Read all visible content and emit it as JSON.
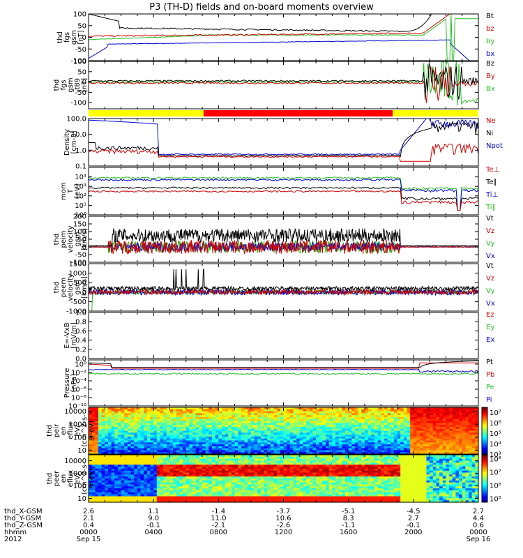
{
  "figure": {
    "title": "P3 (TH-D) fields and on-board moments overview"
  },
  "chart_data": [
    {
      "type": "line",
      "ylabel": [
        "thd",
        "fgs",
        "gsm",
        "[nT]"
      ],
      "ylim": [
        -100,
        100
      ],
      "yticks": [
        "100",
        "50",
        "0",
        "-50",
        "-100"
      ],
      "yscale": "linear",
      "series": [
        {
          "name": "Bt",
          "color": "#000000"
        },
        {
          "name": "bz",
          "color": "#d00000"
        },
        {
          "name": "by",
          "color": "#20c020"
        },
        {
          "name": "bx",
          "color": "#0000d0"
        }
      ]
    },
    {
      "type": "line",
      "ylabel": [
        "thd",
        "fgs",
        "gsm",
        "-t89",
        "[nT]"
      ],
      "ylim": [
        -130,
        100
      ],
      "yticks": [
        "100",
        "50",
        "0",
        "-50",
        "-100"
      ],
      "yscale": "linear",
      "series": [
        {
          "name": "Bz",
          "color": "#000000"
        },
        {
          "name": "By",
          "color": "#d00000"
        },
        {
          "name": "Bx",
          "color": "#20c020"
        }
      ]
    },
    {
      "type": "bar",
      "note": "mode bar",
      "segments": [
        {
          "from": 0.0,
          "to": 0.295,
          "color": "#ffff00"
        },
        {
          "from": 0.295,
          "to": 0.78,
          "color": "#ff0000"
        },
        {
          "from": 0.78,
          "to": 1.0,
          "color": "#ffff00"
        }
      ]
    },
    {
      "type": "line",
      "ylabel": [
        "Density",
        "[cm-3]"
      ],
      "yscale": "log",
      "ylim": [
        0.1,
        100
      ],
      "yticks": [
        "100.0",
        "10.0",
        "1.0",
        "0.1"
      ],
      "series": [
        {
          "name": "Ne",
          "color": "#d00000"
        },
        {
          "name": "Ni",
          "color": "#000000"
        },
        {
          "name": "Npot",
          "color": "#0000d0"
        }
      ]
    },
    {
      "type": "line",
      "ylabel": [
        "mom",
        "T",
        "[eV]"
      ],
      "yscale": "log",
      "ylim": [
        1,
        100000
      ],
      "yticks": [
        "10⁴",
        "10³",
        "10²",
        "10¹",
        "10⁰"
      ],
      "series": [
        {
          "name": "Te⊥",
          "color": "#d00000"
        },
        {
          "name": "Te∥",
          "color": "#000000"
        },
        {
          "name": "Ti⊥",
          "color": "#0000d0"
        },
        {
          "name": "Ti∥",
          "color": "#20c020"
        }
      ]
    },
    {
      "type": "line",
      "ylabel": [
        "thd",
        "peim",
        "velocity",
        "gsm",
        "[km/s]"
      ],
      "ylim": [
        -100,
        200
      ],
      "yticks": [
        "200",
        "150",
        "100",
        "50",
        "0",
        "-50",
        "-100"
      ],
      "yscale": "linear",
      "series": [
        {
          "name": "Vt",
          "color": "#000000"
        },
        {
          "name": "Vz",
          "color": "#d00000"
        },
        {
          "name": "Vy",
          "color": "#20c020"
        },
        {
          "name": "Vx",
          "color": "#0000d0"
        }
      ]
    },
    {
      "type": "line",
      "ylabel": [
        "thd",
        "peem",
        "velocity",
        "gsm",
        "[km/s]"
      ],
      "ylim": [
        -1000,
        1500
      ],
      "yticks": [
        "1500",
        "1000",
        "500",
        "0",
        "-500",
        "-1000"
      ],
      "yscale": "linear",
      "series": [
        {
          "name": "Vt",
          "color": "#000000"
        },
        {
          "name": "Vz",
          "color": "#d00000"
        },
        {
          "name": "Vy",
          "color": "#20c020"
        },
        {
          "name": "Vx",
          "color": "#0000d0"
        }
      ]
    },
    {
      "type": "line",
      "ylabel": [
        "E=-VxB",
        "[mV/m]"
      ],
      "ylim": [
        0,
        1
      ],
      "yticks": [
        "1.0",
        "0.8",
        "0.6",
        "0.4",
        "0.2",
        "0.0"
      ],
      "yscale": "linear",
      "series": [
        {
          "name": "Ez",
          "color": "#d00000"
        },
        {
          "name": "Ey",
          "color": "#20c020"
        },
        {
          "name": "Ex",
          "color": "#0000d0"
        }
      ]
    },
    {
      "type": "line",
      "ylabel": [
        "Pressure",
        "[nPa]"
      ],
      "yscale": "log",
      "ylim": [
        1e-10,
        10
      ],
      "yticks": [
        "10⁰",
        "10⁻²",
        "10⁻⁴",
        "10⁻⁶",
        "10⁻⁸",
        "10⁻¹⁰"
      ],
      "series": [
        {
          "name": "Pt",
          "color": "#000000"
        },
        {
          "name": "Pb",
          "color": "#d00000"
        },
        {
          "name": "Pe",
          "color": "#20c020"
        },
        {
          "name": "Pi",
          "color": "#0000d0"
        }
      ]
    },
    {
      "type": "heatmap",
      "ylabel": [
        "thd",
        "peir",
        "en",
        "eflux",
        "eV/",
        "(cm^2-s-",
        "sr-eV)"
      ],
      "yscale": "log",
      "ylim": [
        5,
        20000
      ],
      "yticks": [
        "10000",
        "1000",
        "100",
        "10"
      ],
      "colorbar": {
        "ticks": [
          "10⁷",
          "10⁶",
          "10⁵",
          "10⁴",
          "10³"
        ],
        "range": [
          1000,
          30000000
        ]
      }
    },
    {
      "type": "heatmap",
      "ylabel": [
        "thd",
        "peer",
        "en",
        "eflux",
        "eV/",
        "(cm^2-s-",
        "sr-eV)"
      ],
      "yscale": "log",
      "ylim": [
        5,
        30000
      ],
      "yticks": [
        "10000",
        "1000",
        "100",
        "10"
      ],
      "colorbar": {
        "ticks": [
          "10⁸",
          "10⁷",
          "10⁶",
          "10⁵"
        ],
        "range": [
          50000,
          200000000
        ]
      }
    }
  ],
  "footer": {
    "row_labels": [
      "thd_X-GSM",
      "thd_Y-GSM",
      "thd_Z-GSM",
      "hhmm",
      "2012"
    ],
    "columns": [
      {
        "x": "2.6",
        "y": "2.1",
        "z": "0.4",
        "time": "0000",
        "date": "Sep 15"
      },
      {
        "x": "1.1",
        "y": "9.0",
        "z": "-0.1",
        "time": "0400",
        "date": ""
      },
      {
        "x": "-1.4",
        "y": "11.0",
        "z": "-2.1",
        "time": "0800",
        "date": ""
      },
      {
        "x": "-3.7",
        "y": "10.6",
        "z": "-2.6",
        "time": "1200",
        "date": ""
      },
      {
        "x": "-5.1",
        "y": "8.3",
        "z": "-1.1",
        "time": "1600",
        "date": ""
      },
      {
        "x": "-4.5",
        "y": "2.7",
        "z": "-0.1",
        "time": "2000",
        "date": ""
      },
      {
        "x": "2.7",
        "y": "4.4",
        "z": "0.6",
        "time": "0000",
        "date": "Sep 16"
      }
    ]
  }
}
